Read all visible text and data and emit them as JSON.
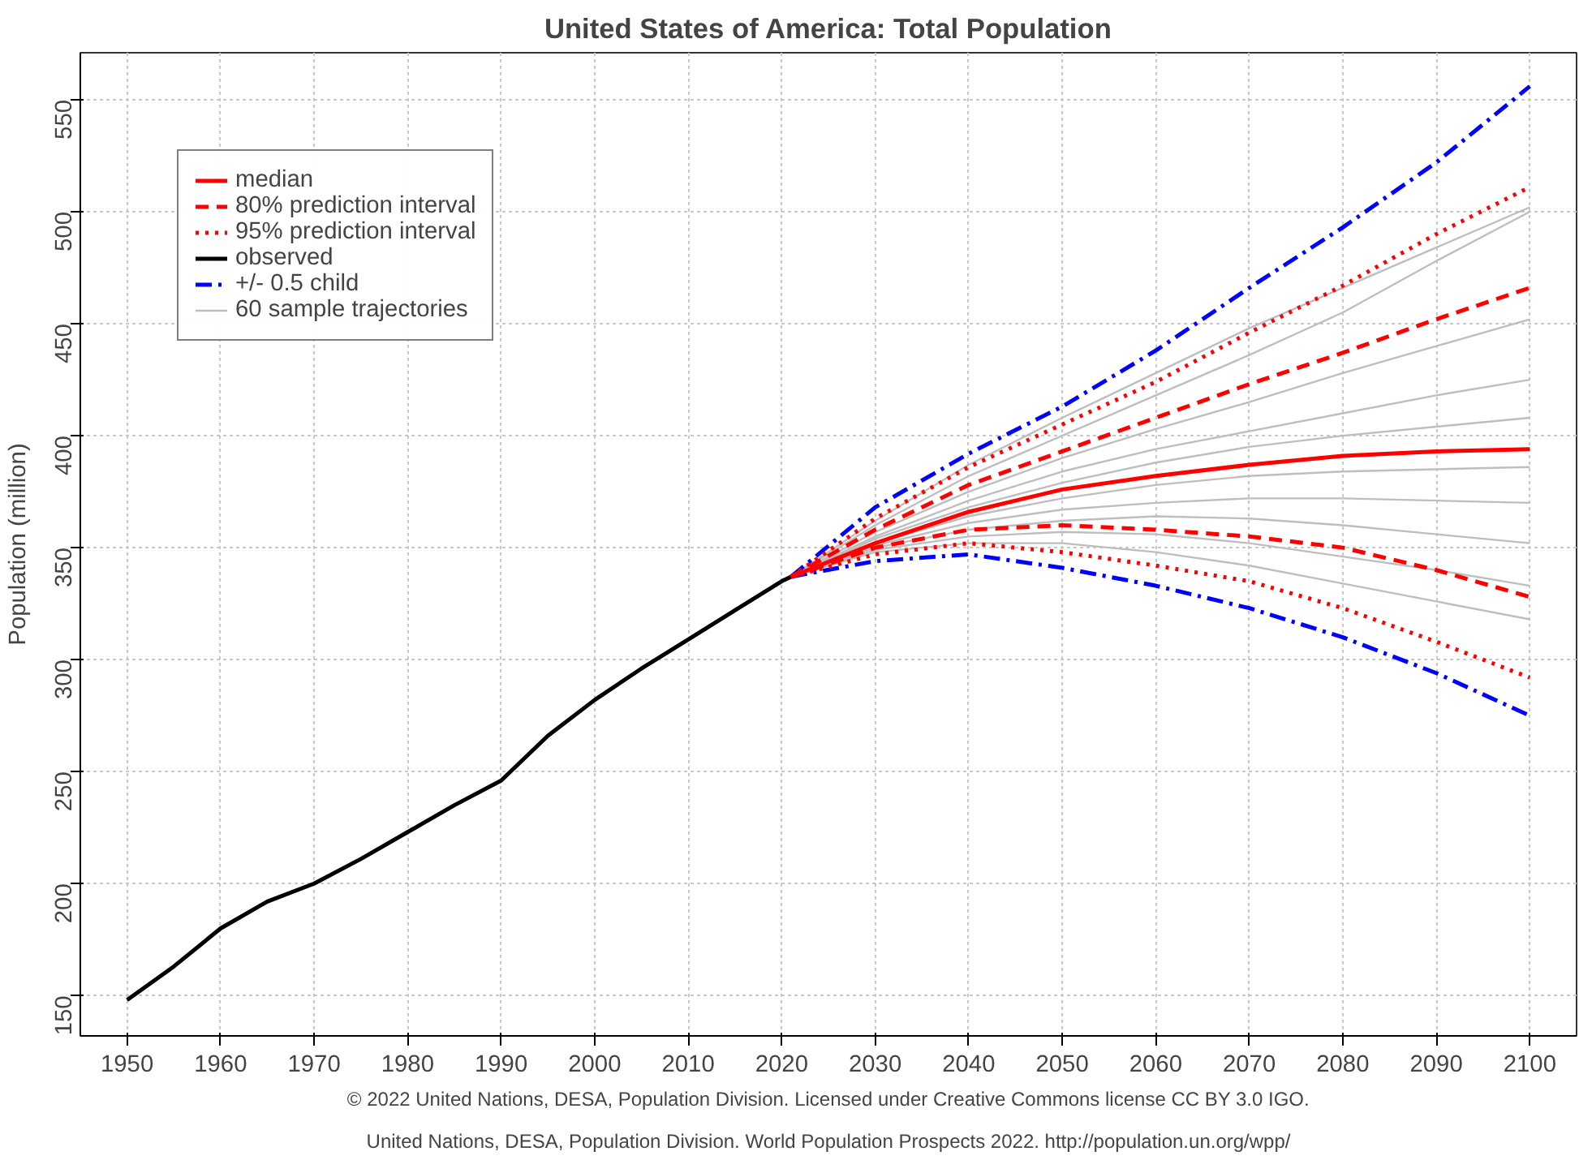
{
  "chart_data": {
    "type": "line",
    "title": "United States of America: Total Population",
    "ylabel": "Population (million)",
    "xlim": [
      1945,
      2105
    ],
    "ylim": [
      132,
      571
    ],
    "xticks": [
      1950,
      1960,
      1970,
      1980,
      1990,
      2000,
      2010,
      2020,
      2030,
      2040,
      2050,
      2060,
      2070,
      2080,
      2090,
      2100
    ],
    "yticks": [
      150,
      200,
      250,
      300,
      350,
      400,
      450,
      500,
      550
    ],
    "grid": true,
    "legend": "top left",
    "annotations": [
      "© 2022 United Nations, DESA, Population Division. Licensed under Creative Commons license CC BY 3.0 IGO.",
      "United Nations, DESA, Population Division. World Population Prospects 2022. http://population.un.org/wpp/"
    ],
    "series": [
      {
        "name": "median",
        "color": "#ff0000",
        "line_style": "solid",
        "x": [
          2021,
          2030,
          2040,
          2050,
          2060,
          2070,
          2080,
          2090,
          2100
        ],
        "values": [
          337,
          352,
          366,
          376,
          382,
          387,
          391,
          393,
          394
        ]
      },
      {
        "name": "80% prediction interval",
        "color": "#ff0000",
        "line_style": "dashed",
        "x": [
          2021,
          2030,
          2040,
          2050,
          2060,
          2070,
          2080,
          2090,
          2100
        ],
        "values": [
          337,
          358,
          378,
          393,
          408,
          423,
          437,
          452,
          466
        ]
      },
      {
        "color": "#ff0000",
        "line_style": "dashed",
        "x": [
          2021,
          2030,
          2040,
          2050,
          2060,
          2070,
          2080,
          2090,
          2100
        ],
        "values": [
          337,
          350,
          358,
          360,
          358,
          355,
          350,
          340,
          328
        ]
      },
      {
        "name": "95% prediction interval",
        "color": "#ff0000",
        "line_style": "dotted",
        "x": [
          2021,
          2030,
          2040,
          2050,
          2060,
          2070,
          2080,
          2090,
          2100
        ],
        "values": [
          337,
          363,
          386,
          405,
          424,
          446,
          467,
          490,
          511
        ]
      },
      {
        "color": "#ff0000",
        "line_style": "dotted",
        "x": [
          2021,
          2030,
          2040,
          2050,
          2060,
          2070,
          2080,
          2090,
          2100
        ],
        "values": [
          337,
          347,
          352,
          348,
          342,
          335,
          323,
          308,
          292
        ]
      },
      {
        "name": "observed",
        "color": "#000000",
        "line_style": "solid",
        "x": [
          1950,
          1955,
          1960,
          1965,
          1970,
          1975,
          1980,
          1985,
          1990,
          1995,
          2000,
          2005,
          2010,
          2015,
          2020,
          2021
        ],
        "values": [
          148,
          163,
          180,
          192,
          200,
          211,
          223,
          235,
          246,
          266,
          282,
          296,
          309,
          322,
          335,
          337
        ]
      },
      {
        "name": "+/- 0.5 child",
        "color": "#0000ff",
        "line_style": "dashdot",
        "x": [
          2021,
          2030,
          2040,
          2050,
          2060,
          2070,
          2080,
          2090,
          2100
        ],
        "values": [
          337,
          368,
          392,
          413,
          438,
          466,
          493,
          522,
          556
        ]
      },
      {
        "color": "#0000ff",
        "line_style": "dashdot",
        "x": [
          2021,
          2030,
          2040,
          2050,
          2060,
          2070,
          2080,
          2090,
          2100
        ],
        "values": [
          337,
          344,
          347,
          341,
          333,
          323,
          310,
          294,
          275
        ]
      },
      {
        "name": "60 sample trajectories",
        "color": "#bebebe",
        "line_style": "solid",
        "x": [
          2021,
          2030,
          2040,
          2050,
          2060,
          2070,
          2080,
          2090,
          2100
        ],
        "values": [
          337,
          360,
          382,
          400,
          418,
          436,
          455,
          478,
          500
        ]
      },
      {
        "color": "#bebebe",
        "line_style": "solid",
        "x": [
          2021,
          2030,
          2040,
          2050,
          2060,
          2070,
          2080,
          2090,
          2100
        ],
        "values": [
          337,
          357,
          375,
          390,
          403,
          415,
          428,
          440,
          452
        ]
      },
      {
        "color": "#bebebe",
        "line_style": "solid",
        "x": [
          2021,
          2030,
          2040,
          2050,
          2060,
          2070,
          2080,
          2090,
          2100
        ],
        "values": [
          337,
          355,
          371,
          384,
          394,
          402,
          410,
          418,
          425
        ]
      },
      {
        "color": "#bebebe",
        "line_style": "solid",
        "x": [
          2021,
          2030,
          2040,
          2050,
          2060,
          2070,
          2080,
          2090,
          2100
        ],
        "values": [
          337,
          354,
          368,
          379,
          388,
          395,
          400,
          404,
          408
        ]
      },
      {
        "color": "#bebebe",
        "line_style": "solid",
        "x": [
          2021,
          2030,
          2040,
          2050,
          2060,
          2070,
          2080,
          2090,
          2100
        ],
        "values": [
          337,
          352,
          364,
          372,
          378,
          382,
          384,
          385,
          386
        ]
      },
      {
        "color": "#bebebe",
        "line_style": "solid",
        "x": [
          2021,
          2030,
          2040,
          2050,
          2060,
          2070,
          2080,
          2090,
          2100
        ],
        "values": [
          337,
          351,
          361,
          367,
          370,
          372,
          372,
          371,
          370
        ]
      },
      {
        "color": "#bebebe",
        "line_style": "solid",
        "x": [
          2021,
          2030,
          2040,
          2050,
          2060,
          2070,
          2080,
          2090,
          2100
        ],
        "values": [
          337,
          350,
          358,
          362,
          364,
          363,
          360,
          356,
          352
        ]
      },
      {
        "color": "#bebebe",
        "line_style": "solid",
        "x": [
          2021,
          2030,
          2040,
          2050,
          2060,
          2070,
          2080,
          2090,
          2100
        ],
        "values": [
          337,
          349,
          355,
          357,
          356,
          352,
          346,
          340,
          333
        ]
      },
      {
        "color": "#bebebe",
        "line_style": "solid",
        "x": [
          2021,
          2030,
          2040,
          2050,
          2060,
          2070,
          2080,
          2090,
          2100
        ],
        "values": [
          337,
          348,
          352,
          352,
          348,
          342,
          334,
          326,
          318
        ]
      },
      {
        "color": "#bebebe",
        "line_style": "solid",
        "x": [
          2021,
          2030,
          2040,
          2050,
          2060,
          2070,
          2080,
          2090,
          2100
        ],
        "values": [
          337,
          362,
          387,
          408,
          428,
          448,
          466,
          484,
          502
        ]
      }
    ]
  }
}
